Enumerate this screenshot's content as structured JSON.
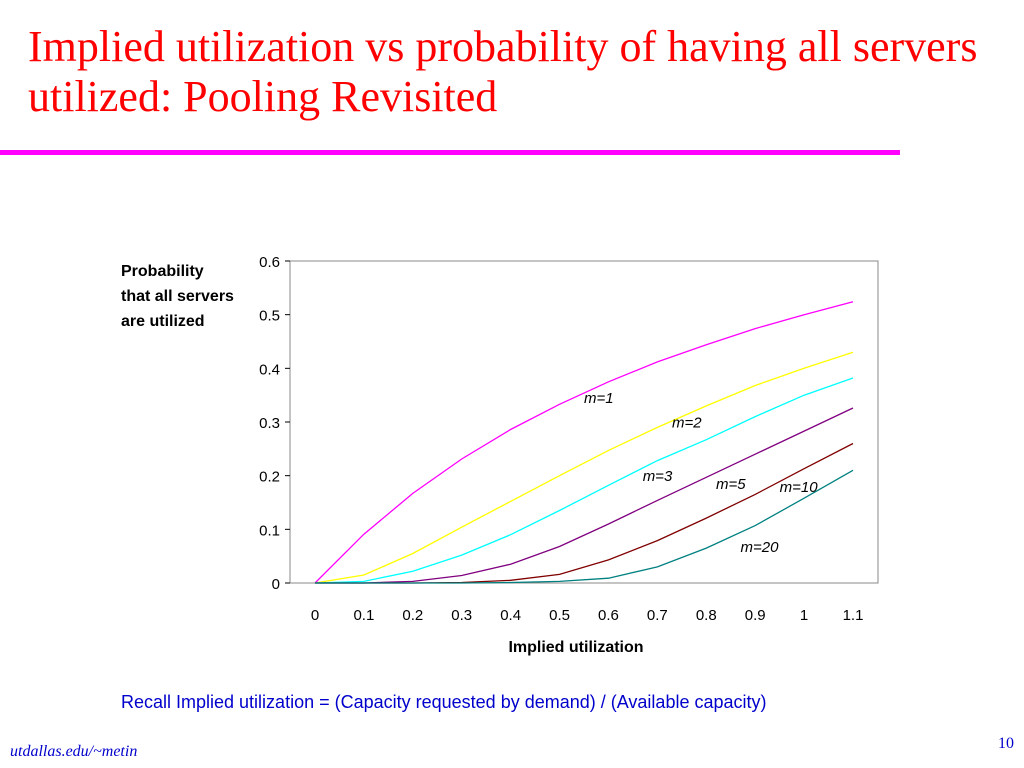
{
  "slide": {
    "title": "Implied utilization vs probability of having all servers utilized: Pooling Revisited",
    "note": "Recall Implied utilization = (Capacity requested by demand) / (Available capacity)",
    "footer": "utdallas.edu/~metin",
    "page_number": "10",
    "colors": {
      "title": "#ff0000",
      "rule": "#ff00ff",
      "note": "#0000cc"
    }
  },
  "chart_data": {
    "type": "line",
    "title": "",
    "xlabel": "Implied utilization",
    "ylabel": "Probability\nthat all servers\nare utilized",
    "x": [
      0,
      0.1,
      0.2,
      0.3,
      0.4,
      0.5,
      0.6,
      0.7,
      0.8,
      0.9,
      1,
      1.1
    ],
    "x_tick_labels": [
      "0",
      "0.1",
      "0.2",
      "0.3",
      "0.4",
      "0.5",
      "0.6",
      "0.7",
      "0.8",
      "0.9",
      "1",
      "1.1"
    ],
    "ylim": [
      0,
      0.6
    ],
    "y_ticks": [
      0,
      0.1,
      0.2,
      0.3,
      0.4,
      0.5,
      0.6
    ],
    "y_tick_labels": [
      "0",
      "0.1",
      "0.2",
      "0.3",
      "0.4",
      "0.5",
      "0.6"
    ],
    "grid": false,
    "legend": "none",
    "series": [
      {
        "name": "m=1",
        "color": "#ff00ff",
        "values": [
          0,
          0.091,
          0.167,
          0.231,
          0.286,
          0.333,
          0.375,
          0.412,
          0.444,
          0.474,
          0.5,
          0.524
        ]
      },
      {
        "name": "m=2",
        "color": "#ffff00",
        "values": [
          0,
          0.015,
          0.055,
          0.104,
          0.152,
          0.2,
          0.247,
          0.29,
          0.33,
          0.368,
          0.4,
          0.43
        ]
      },
      {
        "name": "m=3",
        "color": "#00ffff",
        "values": [
          0,
          0.003,
          0.022,
          0.052,
          0.09,
          0.135,
          0.182,
          0.228,
          0.267,
          0.31,
          0.35,
          0.382
        ]
      },
      {
        "name": "m=5",
        "color": "#800080",
        "values": [
          0,
          0.0,
          0.003,
          0.014,
          0.035,
          0.068,
          0.11,
          0.154,
          0.197,
          0.24,
          0.283,
          0.326
        ]
      },
      {
        "name": "m=10",
        "color": "#800000",
        "values": [
          0,
          0,
          0,
          0.001,
          0.005,
          0.016,
          0.043,
          0.079,
          0.121,
          0.165,
          0.213,
          0.26
        ]
      },
      {
        "name": "m=20",
        "color": "#008080",
        "values": [
          0,
          0,
          0,
          0,
          0.001,
          0.003,
          0.009,
          0.03,
          0.065,
          0.107,
          0.158,
          0.21
        ]
      }
    ],
    "annotations": [
      "m=1",
      "m=2",
      "m=3",
      "m=5",
      "m=10",
      "m=20"
    ]
  }
}
